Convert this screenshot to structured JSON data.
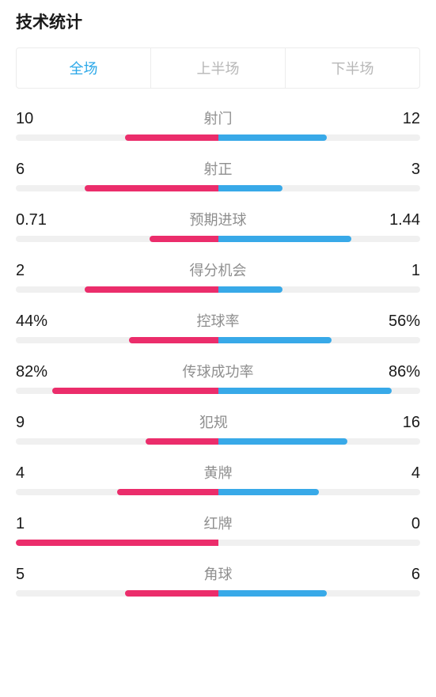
{
  "title": "技术统计",
  "tabs": {
    "full": "全场",
    "first": "上半场",
    "second": "下半场",
    "activeIndex": 0
  },
  "colors": {
    "left": "#eb2d6b",
    "right": "#38a9e8",
    "track": "#f0f0f0",
    "active": "#2aa7e8",
    "inactive": "#b7b7b7",
    "label": "#8e8e8e"
  },
  "stats": [
    {
      "label": "射门",
      "leftText": "10",
      "rightText": "12",
      "leftPct": 23,
      "rightPct": 27
    },
    {
      "label": "射正",
      "leftText": "6",
      "rightText": "3",
      "leftPct": 33,
      "rightPct": 16
    },
    {
      "label": "预期进球",
      "leftText": "0.71",
      "rightText": "1.44",
      "leftPct": 17,
      "rightPct": 33
    },
    {
      "label": "得分机会",
      "leftText": "2",
      "rightText": "1",
      "leftPct": 33,
      "rightPct": 16
    },
    {
      "label": "控球率",
      "leftText": "44%",
      "rightText": "56%",
      "leftPct": 22,
      "rightPct": 28
    },
    {
      "label": "传球成功率",
      "leftText": "82%",
      "rightText": "86%",
      "leftPct": 41,
      "rightPct": 43
    },
    {
      "label": "犯规",
      "leftText": "9",
      "rightText": "16",
      "leftPct": 18,
      "rightPct": 32
    },
    {
      "label": "黄牌",
      "leftText": "4",
      "rightText": "4",
      "leftPct": 25,
      "rightPct": 25
    },
    {
      "label": "红牌",
      "leftText": "1",
      "rightText": "0",
      "leftPct": 50,
      "rightPct": 0
    },
    {
      "label": "角球",
      "leftText": "5",
      "rightText": "6",
      "leftPct": 23,
      "rightPct": 27
    }
  ]
}
